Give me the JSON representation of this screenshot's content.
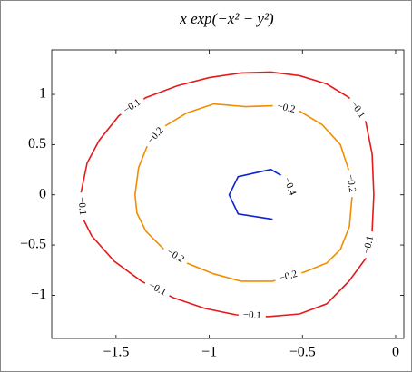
{
  "chart_data": {
    "type": "contour",
    "title": "x exp(−x² − y²)",
    "xlim": [
      -1.845,
      0.044
    ],
    "ylim": [
      -1.43,
      1.443
    ],
    "xticks": [
      {
        "value": -1.5,
        "label": "−1.5"
      },
      {
        "value": -1,
        "label": "−1"
      },
      {
        "value": -0.5,
        "label": "−0.5"
      },
      0
    ],
    "yticks": [
      {
        "value": -1,
        "label": "−1"
      },
      {
        "value": -0.5,
        "label": "−0.5"
      },
      0,
      0.5,
      1
    ],
    "contours": [
      {
        "level": -0.1,
        "label": "−0.1",
        "color": "#e41a1c",
        "x": [
          -1.69,
          -1.655,
          -1.59,
          -1.485,
          -1.34,
          -1.17,
          -1.0,
          -0.83,
          -0.67,
          -0.515,
          -0.37,
          -0.25,
          -0.16,
          -0.126,
          -0.117,
          -0.126,
          -0.16,
          -0.25,
          -0.37,
          -0.515,
          -0.685,
          -0.855,
          -1.024,
          -1.194,
          -1.364,
          -1.51,
          -1.631,
          -1.68,
          -1.69
        ],
        "y": [
          0,
          0.317,
          0.543,
          0.787,
          0.968,
          1.086,
          1.167,
          1.213,
          1.222,
          1.186,
          1.104,
          0.968,
          0.724,
          0.407,
          0,
          -0.362,
          -0.633,
          -0.86,
          -1.086,
          -1.186,
          -1.213,
          -1.195,
          -1.131,
          -1.023,
          -0.86,
          -0.661,
          -0.407,
          -0.226,
          0
        ]
      },
      {
        "level": -0.2,
        "label": "−0.2",
        "color": "#f28c00",
        "x": [
          -1.398,
          -1.379,
          -1.33,
          -1.243,
          -1.121,
          -0.976,
          -0.806,
          -0.66,
          -0.515,
          -0.393,
          -0.296,
          -0.248,
          -0.233,
          -0.248,
          -0.296,
          -0.369,
          -0.49,
          -0.66,
          -0.83,
          -0.976,
          -1.121,
          -1.243,
          -1.34,
          -1.388,
          -1.398
        ],
        "y": [
          0,
          0.271,
          0.498,
          0.679,
          0.814,
          0.905,
          0.878,
          0.887,
          0.833,
          0.697,
          0.498,
          0.226,
          0,
          -0.317,
          -0.543,
          -0.679,
          -0.769,
          -0.86,
          -0.86,
          -0.787,
          -0.679,
          -0.543,
          -0.362,
          -0.181,
          0
        ]
      },
      {
        "level": -0.4,
        "label": "−0.4",
        "color": "#0a22d0",
        "x": [
          -0.66,
          -0.845,
          -0.893,
          -0.845,
          -0.67,
          -0.587,
          -0.553
        ],
        "y": [
          -0.244,
          -0.19,
          0,
          0.181,
          0.253,
          0.163,
          0
        ]
      }
    ]
  }
}
